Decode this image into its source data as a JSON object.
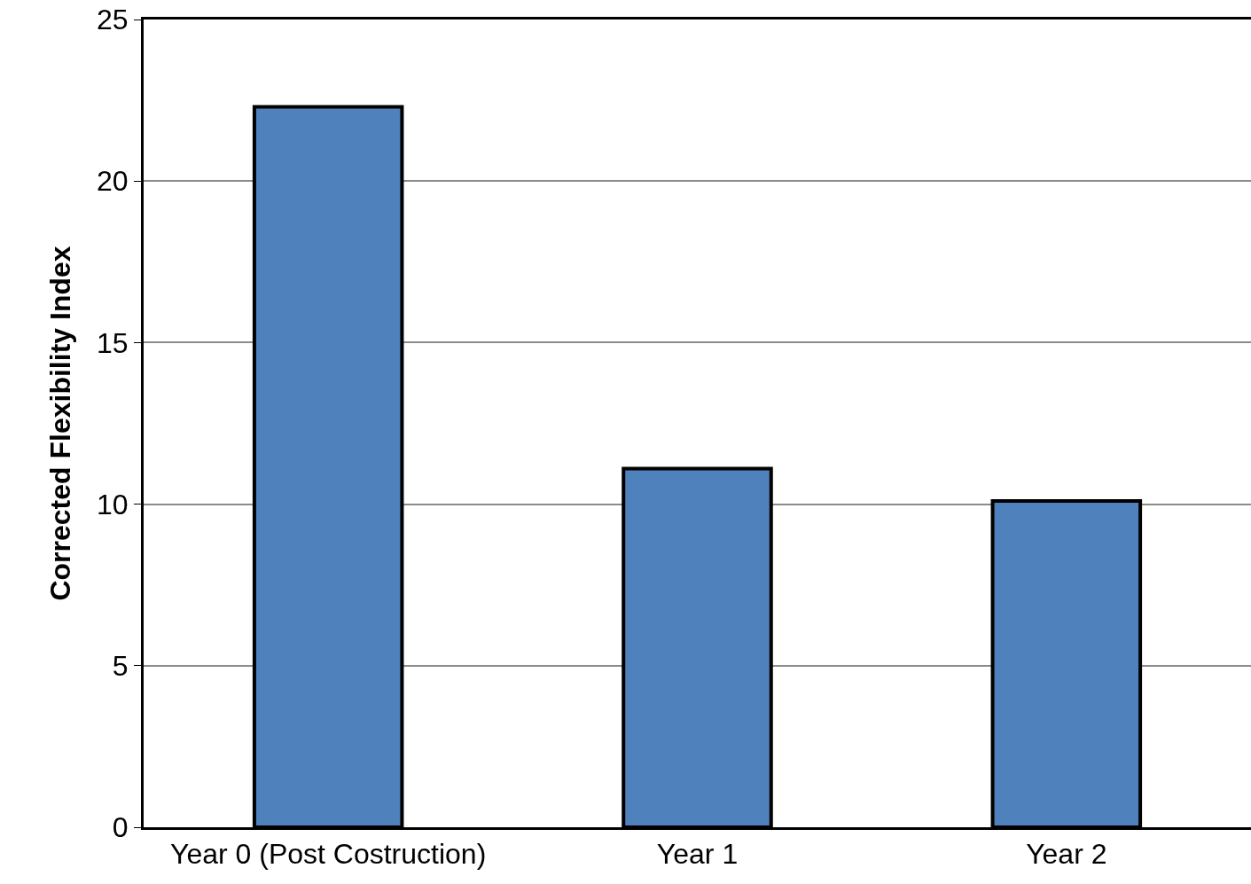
{
  "chart_data": {
    "type": "bar",
    "ylabel": "Corrected Flexibility Index",
    "categories": [
      "Year 0 (Post Costruction)",
      "Year 1",
      "Year 2"
    ],
    "values": [
      22.3,
      11.1,
      10.1
    ],
    "color": "#4f81bd",
    "ylim": [
      0,
      25
    ],
    "yticks": [
      0,
      5,
      10,
      15,
      20,
      25
    ],
    "grid": "y",
    "legend": false
  }
}
